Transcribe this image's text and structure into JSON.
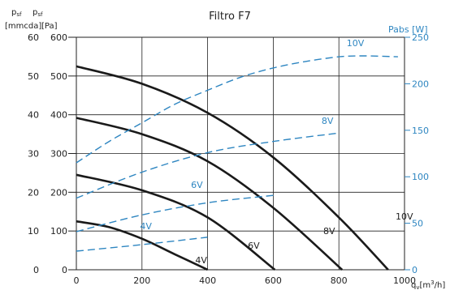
{
  "colors": {
    "pressure_curve": "#1a1a1a",
    "power_curve": "#2e86c1",
    "grid": "#222222"
  },
  "chart_data": {
    "type": "line",
    "title": "Filtro F7",
    "ylabel_left_mmcda": {
      "symbol": "p",
      "sub": "sf",
      "unit": "[mmcda]"
    },
    "ylabel_left_pa": {
      "symbol": "p",
      "sub": "sf",
      "unit": "[Pa]"
    },
    "ylabel_right": "Pabs [W]",
    "xlabel": {
      "symbol": "q",
      "sub": "v",
      "unit_pre": "[m",
      "unit_sup": "3",
      "unit_post": "/h]"
    },
    "xlim": [
      0,
      1000
    ],
    "ylim_pa": [
      0,
      600
    ],
    "ylim_mmcda": [
      0,
      60
    ],
    "ylim_w": [
      0,
      250
    ],
    "grid": true,
    "x_ticks": [
      "0",
      "200",
      "400",
      "600",
      "800",
      "1000"
    ],
    "y_ticks_pa": [
      "0",
      "100",
      "200",
      "300",
      "400",
      "500",
      "600"
    ],
    "y_ticks_mmcda": [
      "0",
      "10",
      "20",
      "30",
      "40",
      "50",
      "60"
    ],
    "y_ticks_w": [
      "0",
      "50",
      "100",
      "150",
      "200",
      "250"
    ],
    "pressure_series": [
      {
        "name": "10V",
        "x": [
          0,
          200,
          400,
          600,
          800,
          950
        ],
        "y": [
          525,
          480,
          405,
          290,
          135,
          0
        ]
      },
      {
        "name": "8V",
        "x": [
          0,
          200,
          400,
          600,
          810
        ],
        "y": [
          392,
          350,
          280,
          160,
          0
        ]
      },
      {
        "name": "6V",
        "x": [
          0,
          200,
          400,
          605
        ],
        "y": [
          245,
          205,
          135,
          0
        ]
      },
      {
        "name": "4V",
        "x": [
          0,
          100,
          200,
          300,
          400
        ],
        "y": [
          125,
          110,
          80,
          40,
          0
        ]
      }
    ],
    "power_series": [
      {
        "name": "10V",
        "x": [
          0,
          100,
          200,
          300,
          400,
          500,
          600,
          700,
          800,
          880,
          980
        ],
        "y": [
          115,
          138,
          158,
          178,
          193,
          207,
          217,
          224,
          229,
          230,
          229
        ]
      },
      {
        "name": "8V",
        "x": [
          0,
          200,
          400,
          600,
          800
        ],
        "y": [
          77,
          105,
          126,
          138,
          147
        ]
      },
      {
        "name": "6V",
        "x": [
          0,
          200,
          400,
          600
        ],
        "y": [
          41,
          59,
          72,
          80
        ]
      },
      {
        "name": "4V",
        "x": [
          0,
          200,
          400
        ],
        "y": [
          20,
          27,
          35
        ]
      }
    ]
  }
}
